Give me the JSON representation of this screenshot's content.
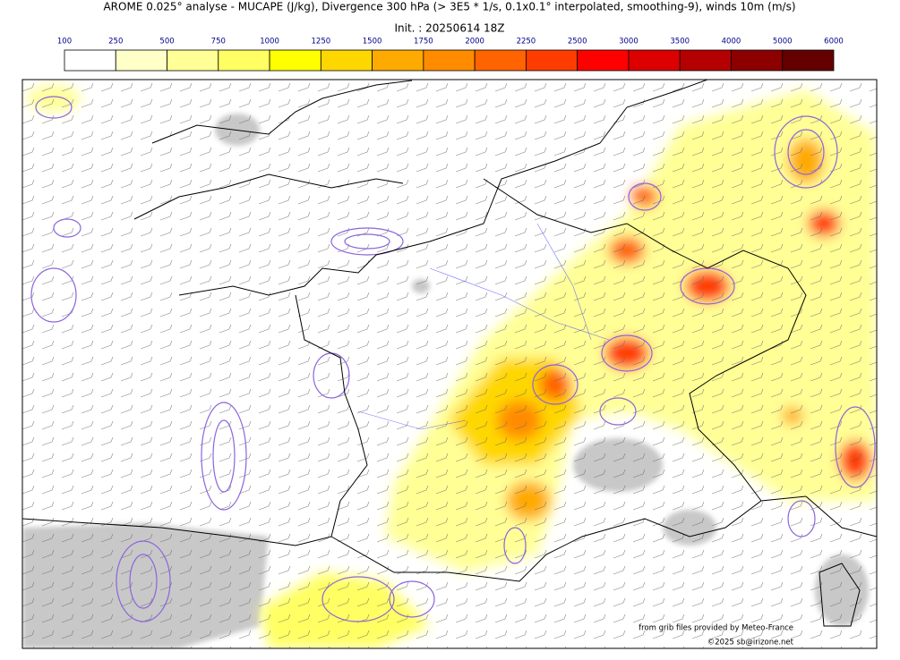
{
  "header": {
    "title": "AROME 0.025° analyse - MUCAPE (J/kg), Divergence 300 hPa (> 3E5 * 1/s, 0.1x0.1° interpolated, smoothing-9), winds 10m (m/s)",
    "init": "Init. : 20250614 18Z"
  },
  "colorbar": {
    "ticks": [
      100,
      250,
      500,
      750,
      1000,
      1250,
      1500,
      1750,
      2000,
      2250,
      2500,
      3000,
      3500,
      4000,
      5000,
      6000
    ],
    "colors": [
      "#ffffff",
      "#ffffc8",
      "#ffff96",
      "#ffff64",
      "#ffff00",
      "#ffd700",
      "#ffaa00",
      "#ff8c00",
      "#ff6400",
      "#ff3c00",
      "#ff0000",
      "#dc0000",
      "#b40000",
      "#8c0000",
      "#640000"
    ]
  },
  "credits": {
    "source": "from grib files provided by Meteo-France",
    "copyright": "©2025 sb@irizone.net"
  }
}
